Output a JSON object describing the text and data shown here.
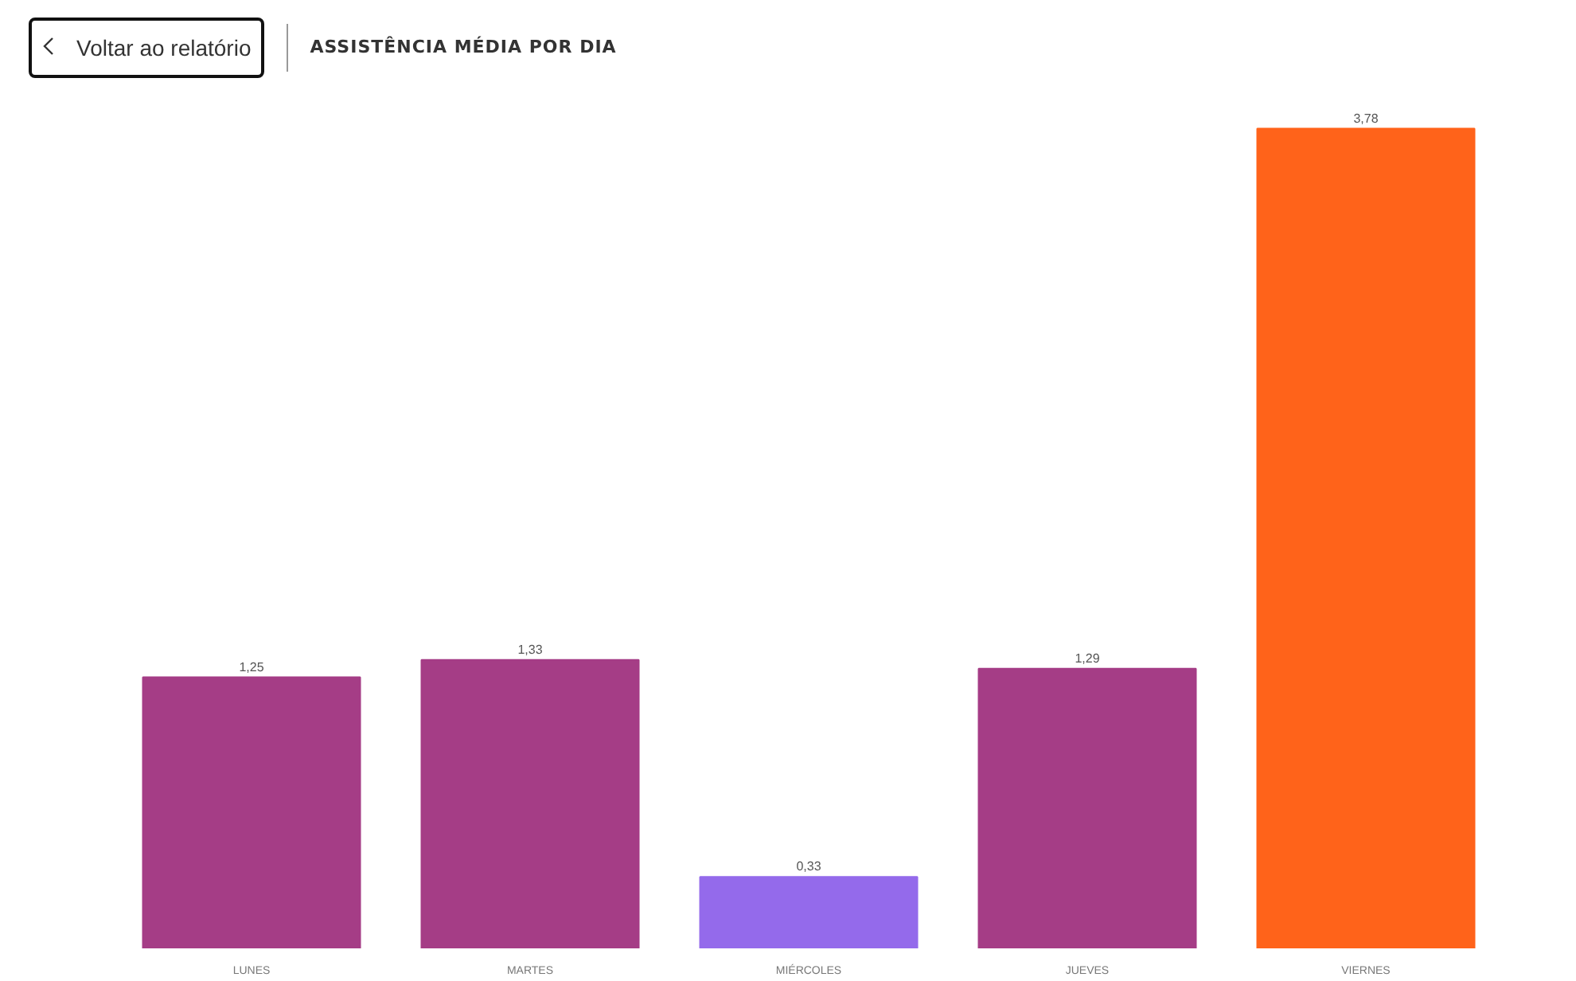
{
  "chart_data": {
    "type": "bar",
    "title": "ASSISTÊNCIA MÉDIA POR DIA",
    "annotations": [
      "Voltar ao relatório"
    ],
    "categories": [
      "LUNES",
      "MARTES",
      "MIÉRCOLES",
      "JUEVES",
      "VIERNES"
    ],
    "values": [
      1.25,
      1.33,
      0.33,
      1.29,
      3.78
    ],
    "colors": [
      "#a53d86",
      "#a53d86",
      "#946aeb",
      "#a53d86",
      "#ff631a"
    ],
    "value_labels": [
      "1,25",
      "1,33",
      "0,33",
      "1,29",
      "3,78"
    ],
    "grid": false
  }
}
